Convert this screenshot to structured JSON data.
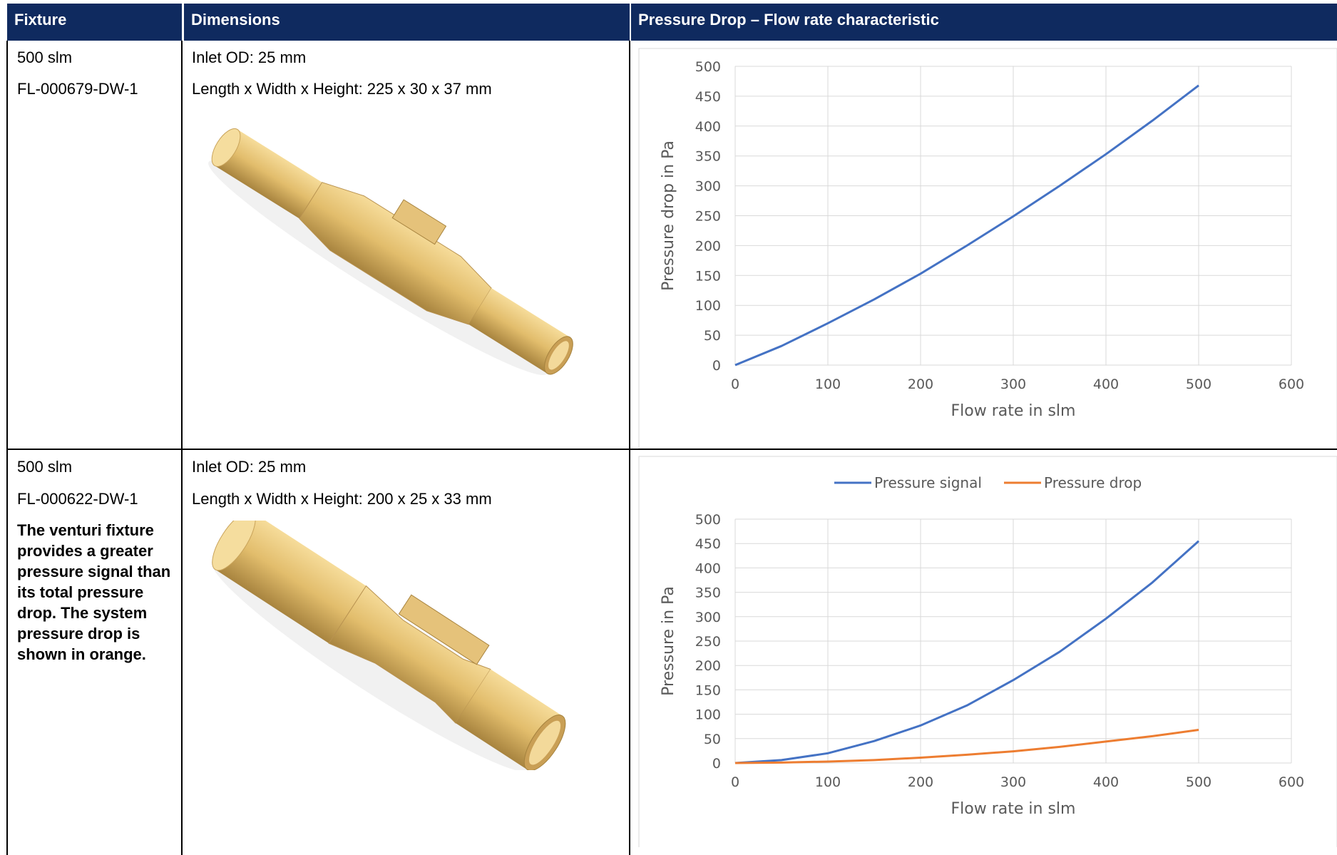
{
  "table": {
    "header": [
      "Fixture",
      "Dimensions",
      "Pressure Drop – Flow rate characteristic"
    ],
    "rows": [
      {
        "fixture": [
          "500 slm",
          "FL-000679-DW-1"
        ],
        "dimensions": [
          "Inlet OD: 25 mm",
          "Length x Width x Height: 225 x 30 x 37 mm"
        ]
      },
      {
        "fixture": [
          "500 slm",
          "FL-000622-DW-1"
        ],
        "note": "The venturi fixture provides a greater pressure signal than its total pressure drop. The system pressure drop is shown in orange.",
        "dimensions": [
          "Inlet OD: 25 mm",
          "Length x Width x Height: 200 x 25 x 33 mm"
        ]
      }
    ]
  },
  "chart_data": [
    {
      "type": "line",
      "x_label": "Flow rate in slm",
      "y_label": "Pressure drop in Pa",
      "x": [
        0,
        50,
        100,
        150,
        200,
        250,
        300,
        350,
        400,
        450,
        500
      ],
      "series": [
        {
          "color": "#4472c4",
          "values": [
            0,
            32,
            70,
            110,
            153,
            200,
            249,
            300,
            353,
            409,
            468
          ]
        }
      ],
      "xlim": [
        0,
        600
      ],
      "xticks": [
        0,
        100,
        200,
        300,
        400,
        500,
        600
      ],
      "ylim": [
        0,
        500
      ],
      "yticks": [
        0,
        50,
        100,
        150,
        200,
        250,
        300,
        350,
        400,
        450,
        500
      ],
      "grid": true
    },
    {
      "type": "line",
      "x_label": "Flow rate in slm",
      "y_label": "Pressure in Pa",
      "x": [
        0,
        50,
        100,
        150,
        200,
        250,
        300,
        350,
        400,
        450,
        500
      ],
      "series": [
        {
          "name": "Pressure signal",
          "color": "#4472c4",
          "values": [
            0,
            6,
            20,
            45,
            77,
            118,
            170,
            228,
            296,
            370,
            455
          ]
        },
        {
          "name": "Pressure drop",
          "color": "#ed7d31",
          "values": [
            0,
            1,
            3,
            6,
            11,
            17,
            24,
            33,
            44,
            55,
            68
          ]
        }
      ],
      "xlim": [
        0,
        600
      ],
      "xticks": [
        0,
        100,
        200,
        300,
        400,
        500,
        600
      ],
      "ylim": [
        0,
        500
      ],
      "yticks": [
        0,
        50,
        100,
        150,
        200,
        250,
        300,
        350,
        400,
        450,
        500
      ],
      "grid": true,
      "legend": "top"
    }
  ]
}
